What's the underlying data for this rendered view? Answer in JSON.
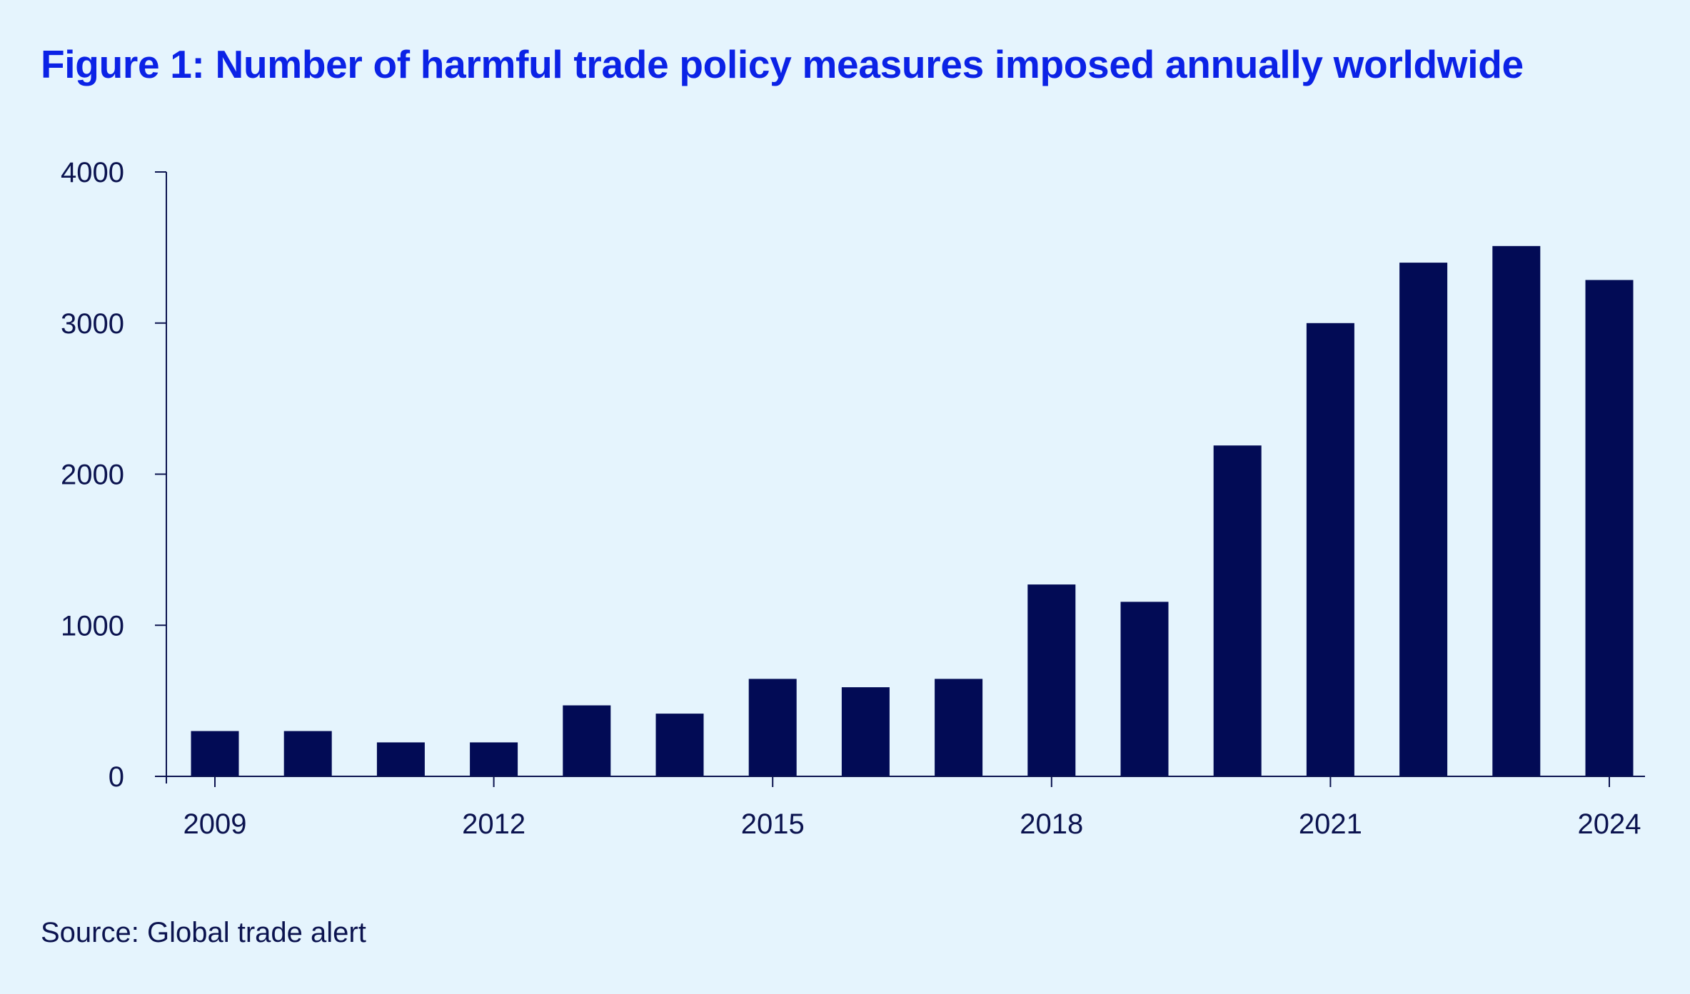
{
  "title": "Figure 1: Number of harmful trade policy measures imposed annually worldwide",
  "source": "Source: Global trade alert",
  "colors": {
    "background": "#e5f4fd",
    "title": "#0b22e6",
    "bar": "#020b55",
    "axis": "#0b134f",
    "text": "#0b134f"
  },
  "chart_data": {
    "type": "bar",
    "title": "Figure 1: Number of harmful trade policy measures imposed annually worldwide",
    "xlabel": "",
    "ylabel": "",
    "categories": [
      "2009",
      "2010",
      "2011",
      "2012",
      "2013",
      "2014",
      "2015",
      "2016",
      "2017",
      "2018",
      "2019",
      "2020",
      "2021",
      "2022",
      "2023",
      "2024"
    ],
    "values": [
      300,
      300,
      225,
      225,
      470,
      415,
      645,
      590,
      645,
      1270,
      1155,
      2190,
      3000,
      3400,
      3510,
      3285
    ],
    "ylim": [
      0,
      4000
    ],
    "yticks": [
      0,
      1000,
      2000,
      3000,
      4000
    ],
    "ytick_labels": [
      "0",
      "1000",
      "2000",
      "3000",
      "4000"
    ],
    "xticks": [
      "2009",
      "2012",
      "2015",
      "2018",
      "2021",
      "2024"
    ],
    "grid": false,
    "legend": "none"
  }
}
